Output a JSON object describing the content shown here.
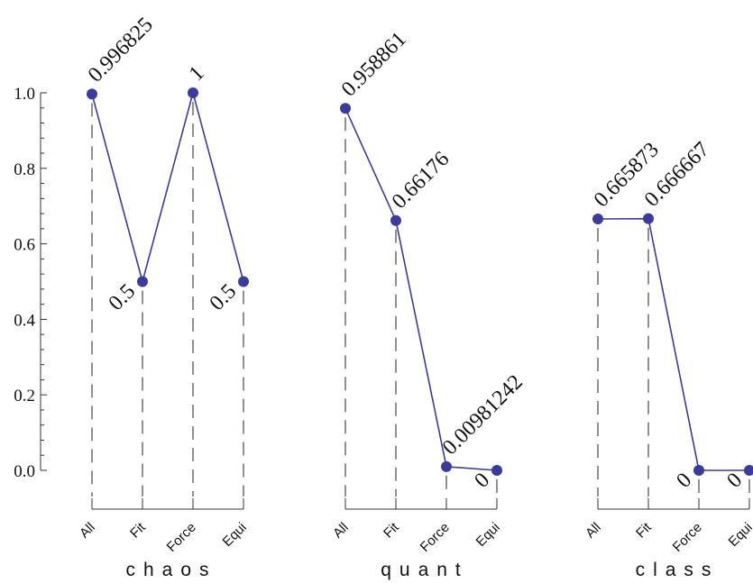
{
  "chart_data": {
    "type": "line",
    "ylim": [
      0,
      1
    ],
    "yticks": [
      "0.0",
      "0.2",
      "0.4",
      "0.6",
      "0.8",
      "1.0"
    ],
    "categories": [
      "All",
      "Fit",
      "Force",
      "Equi"
    ],
    "colors": {
      "series": "#3b3b9c",
      "axis": "#333333"
    },
    "panels": [
      {
        "title": "chaos",
        "values": [
          0.996825,
          0.5,
          1,
          0.5
        ],
        "labels": [
          "0.996825",
          "0.5",
          "1",
          "0.5"
        ],
        "label_side": [
          "above",
          "below",
          "above",
          "below"
        ]
      },
      {
        "title": "quant",
        "values": [
          0.958861,
          0.66176,
          0.00981242,
          0
        ],
        "labels": [
          "0.958861",
          "0.66176",
          "0.00981242",
          "0"
        ],
        "label_side": [
          "above",
          "above",
          "above",
          "below"
        ]
      },
      {
        "title": "class",
        "values": [
          0.665873,
          0.666667,
          0,
          0
        ],
        "labels": [
          "0.665873",
          "0.666667",
          "0",
          "0"
        ],
        "label_side": [
          "above",
          "above",
          "below",
          "below"
        ]
      }
    ]
  }
}
